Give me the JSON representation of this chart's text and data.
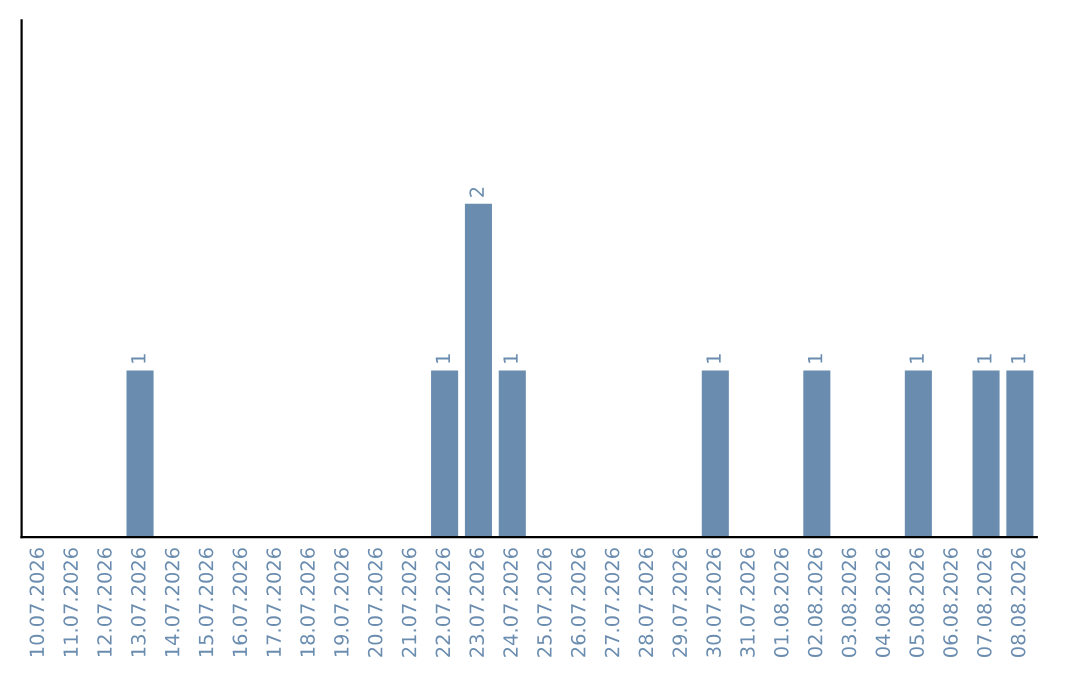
{
  "chart_data": {
    "type": "bar",
    "categories": [
      "10.07.2026",
      "11.07.2026",
      "12.07.2026",
      "13.07.2026",
      "14.07.2026",
      "15.07.2026",
      "16.07.2026",
      "17.07.2026",
      "18.07.2026",
      "19.07.2026",
      "20.07.2026",
      "21.07.2026",
      "22.07.2026",
      "23.07.2026",
      "24.07.2026",
      "25.07.2026",
      "26.07.2026",
      "27.07.2026",
      "28.07.2026",
      "29.07.2026",
      "30.07.2026",
      "31.07.2026",
      "01.08.2026",
      "02.08.2026",
      "03.08.2026",
      "04.08.2026",
      "05.08.2026",
      "06.08.2026",
      "07.08.2026",
      "08.08.2026"
    ],
    "values": [
      0,
      0,
      0,
      1,
      0,
      0,
      0,
      0,
      0,
      0,
      0,
      0,
      1,
      2,
      1,
      0,
      0,
      0,
      0,
      0,
      1,
      0,
      0,
      1,
      0,
      0,
      1,
      0,
      1,
      1
    ],
    "value_labels": [
      null,
      null,
      null,
      "1",
      null,
      null,
      null,
      null,
      null,
      null,
      null,
      null,
      "1",
      "2",
      "1",
      null,
      null,
      null,
      null,
      null,
      "1",
      null,
      null,
      "1",
      null,
      null,
      "1",
      null,
      "1",
      "1"
    ],
    "color": "#6a8caf",
    "tick_labels": "x",
    "grid": false,
    "legend": false
  }
}
